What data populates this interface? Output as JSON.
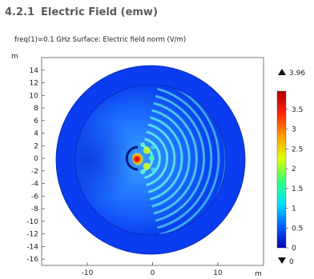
{
  "section": {
    "number": "4.2.1",
    "title": "Electric Field (emw)"
  },
  "chart_data": {
    "type": "heatmap",
    "title": "freq(1)=0.1 GHz  Surface: Electric field norm (V/m)",
    "xlabel": "m",
    "ylabel": "m",
    "x_ticks": [
      -10,
      0,
      10
    ],
    "y_ticks": [
      14,
      12,
      10,
      8,
      6,
      4,
      2,
      0,
      -2,
      -4,
      -6,
      -8,
      -10,
      -12,
      -14,
      -16
    ],
    "xlim": [
      -17,
      17
    ],
    "ylim": [
      -17,
      16
    ],
    "colorbar": {
      "max_label": "3.96",
      "min_label": "0",
      "max": 3.96,
      "min": 0,
      "max_marker": "up-triangle",
      "min_marker": "down-triangle",
      "ticks": [
        3.5,
        3,
        2.5,
        2,
        1.5,
        1,
        0.5,
        0
      ],
      "tick_labels": [
        "3.5",
        "3",
        "2.5",
        "2",
        "1.5",
        "1",
        "0.5",
        "0"
      ],
      "colormap": [
        "#0000b4",
        "#0060ff",
        "#00e0ff",
        "#30ff80",
        "#e0ff00",
        "#ffa000",
        "#ff2000",
        "#b40000"
      ]
    },
    "domain": {
      "outer_radius": 15,
      "inner_radius": 12.3,
      "center": [
        0,
        0
      ],
      "shape": "circle"
    },
    "source": {
      "x": -2,
      "y": 0,
      "peak_value": 3.96
    }
  }
}
